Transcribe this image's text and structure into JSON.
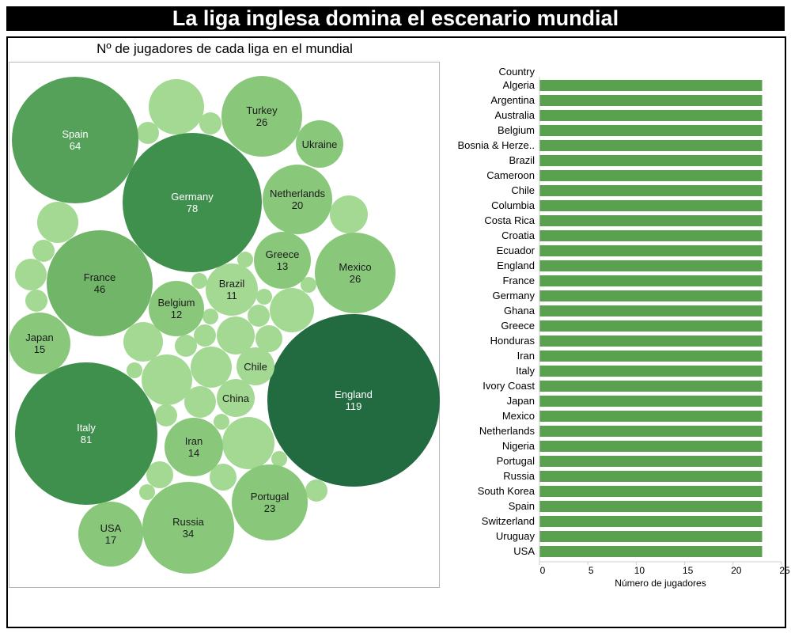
{
  "title": "La liga inglesa domina el escenario mundial",
  "bubble_chart": {
    "subtitle": "Nº de jugadores de cada liga en el mundial"
  },
  "colors": {
    "darkest": "#226a3f",
    "dark": "#3f8f4d",
    "mid": "#55a15a",
    "medium": "#71b569",
    "light": "#89c87b",
    "lightest": "#a3d993",
    "bar": "#59a14f"
  },
  "chart_data": [
    {
      "type": "bubble",
      "title": "Nº de jugadores de cada liga en el mundial",
      "bubbles": [
        {
          "name": "England",
          "value": 119,
          "labeled": true
        },
        {
          "name": "Italy",
          "value": 81,
          "labeled": true
        },
        {
          "name": "Germany",
          "value": 78,
          "labeled": true
        },
        {
          "name": "Spain",
          "value": 64,
          "labeled": true
        },
        {
          "name": "France",
          "value": 46,
          "labeled": true
        },
        {
          "name": "Russia",
          "value": 34,
          "labeled": true
        },
        {
          "name": "Turkey",
          "value": 26,
          "labeled": true
        },
        {
          "name": "Mexico",
          "value": 26,
          "labeled": true
        },
        {
          "name": "Portugal",
          "value": 23,
          "labeled": true
        },
        {
          "name": "Netherlands",
          "value": 20,
          "labeled": true
        },
        {
          "name": "USA",
          "value": 17,
          "labeled": true
        },
        {
          "name": "Japan",
          "value": 15,
          "labeled": true
        },
        {
          "name": "Iran",
          "value": 14,
          "labeled": true
        },
        {
          "name": "Greece",
          "value": 13,
          "labeled": true
        },
        {
          "name": "Belgium",
          "value": 12,
          "labeled": true
        },
        {
          "name": "Brazil",
          "value": 11,
          "labeled": true
        },
        {
          "name": "Ukraine",
          "value": null,
          "labeled": true
        },
        {
          "name": "Chile",
          "value": null,
          "labeled": true
        },
        {
          "name": "China",
          "value": null,
          "labeled": true
        }
      ]
    },
    {
      "type": "bar",
      "orientation": "horizontal",
      "row_header": "Country",
      "xlabel": "Número de jugadores",
      "xlim": [
        0,
        25
      ],
      "xticks": [
        0,
        5,
        10,
        15,
        20,
        25
      ],
      "categories": [
        "Algeria",
        "Argentina",
        "Australia",
        "Belgium",
        "Bosnia & Herze..",
        "Brazil",
        "Cameroon",
        "Chile",
        "Columbia",
        "Costa Rica",
        "Croatia",
        "Ecuador",
        "England",
        "France",
        "Germany",
        "Ghana",
        "Greece",
        "Honduras",
        "Iran",
        "Italy",
        "Ivory Coast",
        "Japan",
        "Mexico",
        "Netherlands",
        "Nigeria",
        "Portugal",
        "Russia",
        "South Korea",
        "Spain",
        "Switzerland",
        "Uruguay",
        "USA"
      ],
      "values": [
        23,
        23,
        23,
        23,
        23,
        23,
        23,
        23,
        23,
        23,
        23,
        23,
        23,
        23,
        23,
        23,
        23,
        23,
        23,
        23,
        23,
        23,
        23,
        23,
        23,
        23,
        23,
        23,
        23,
        23,
        23,
        23
      ]
    }
  ]
}
